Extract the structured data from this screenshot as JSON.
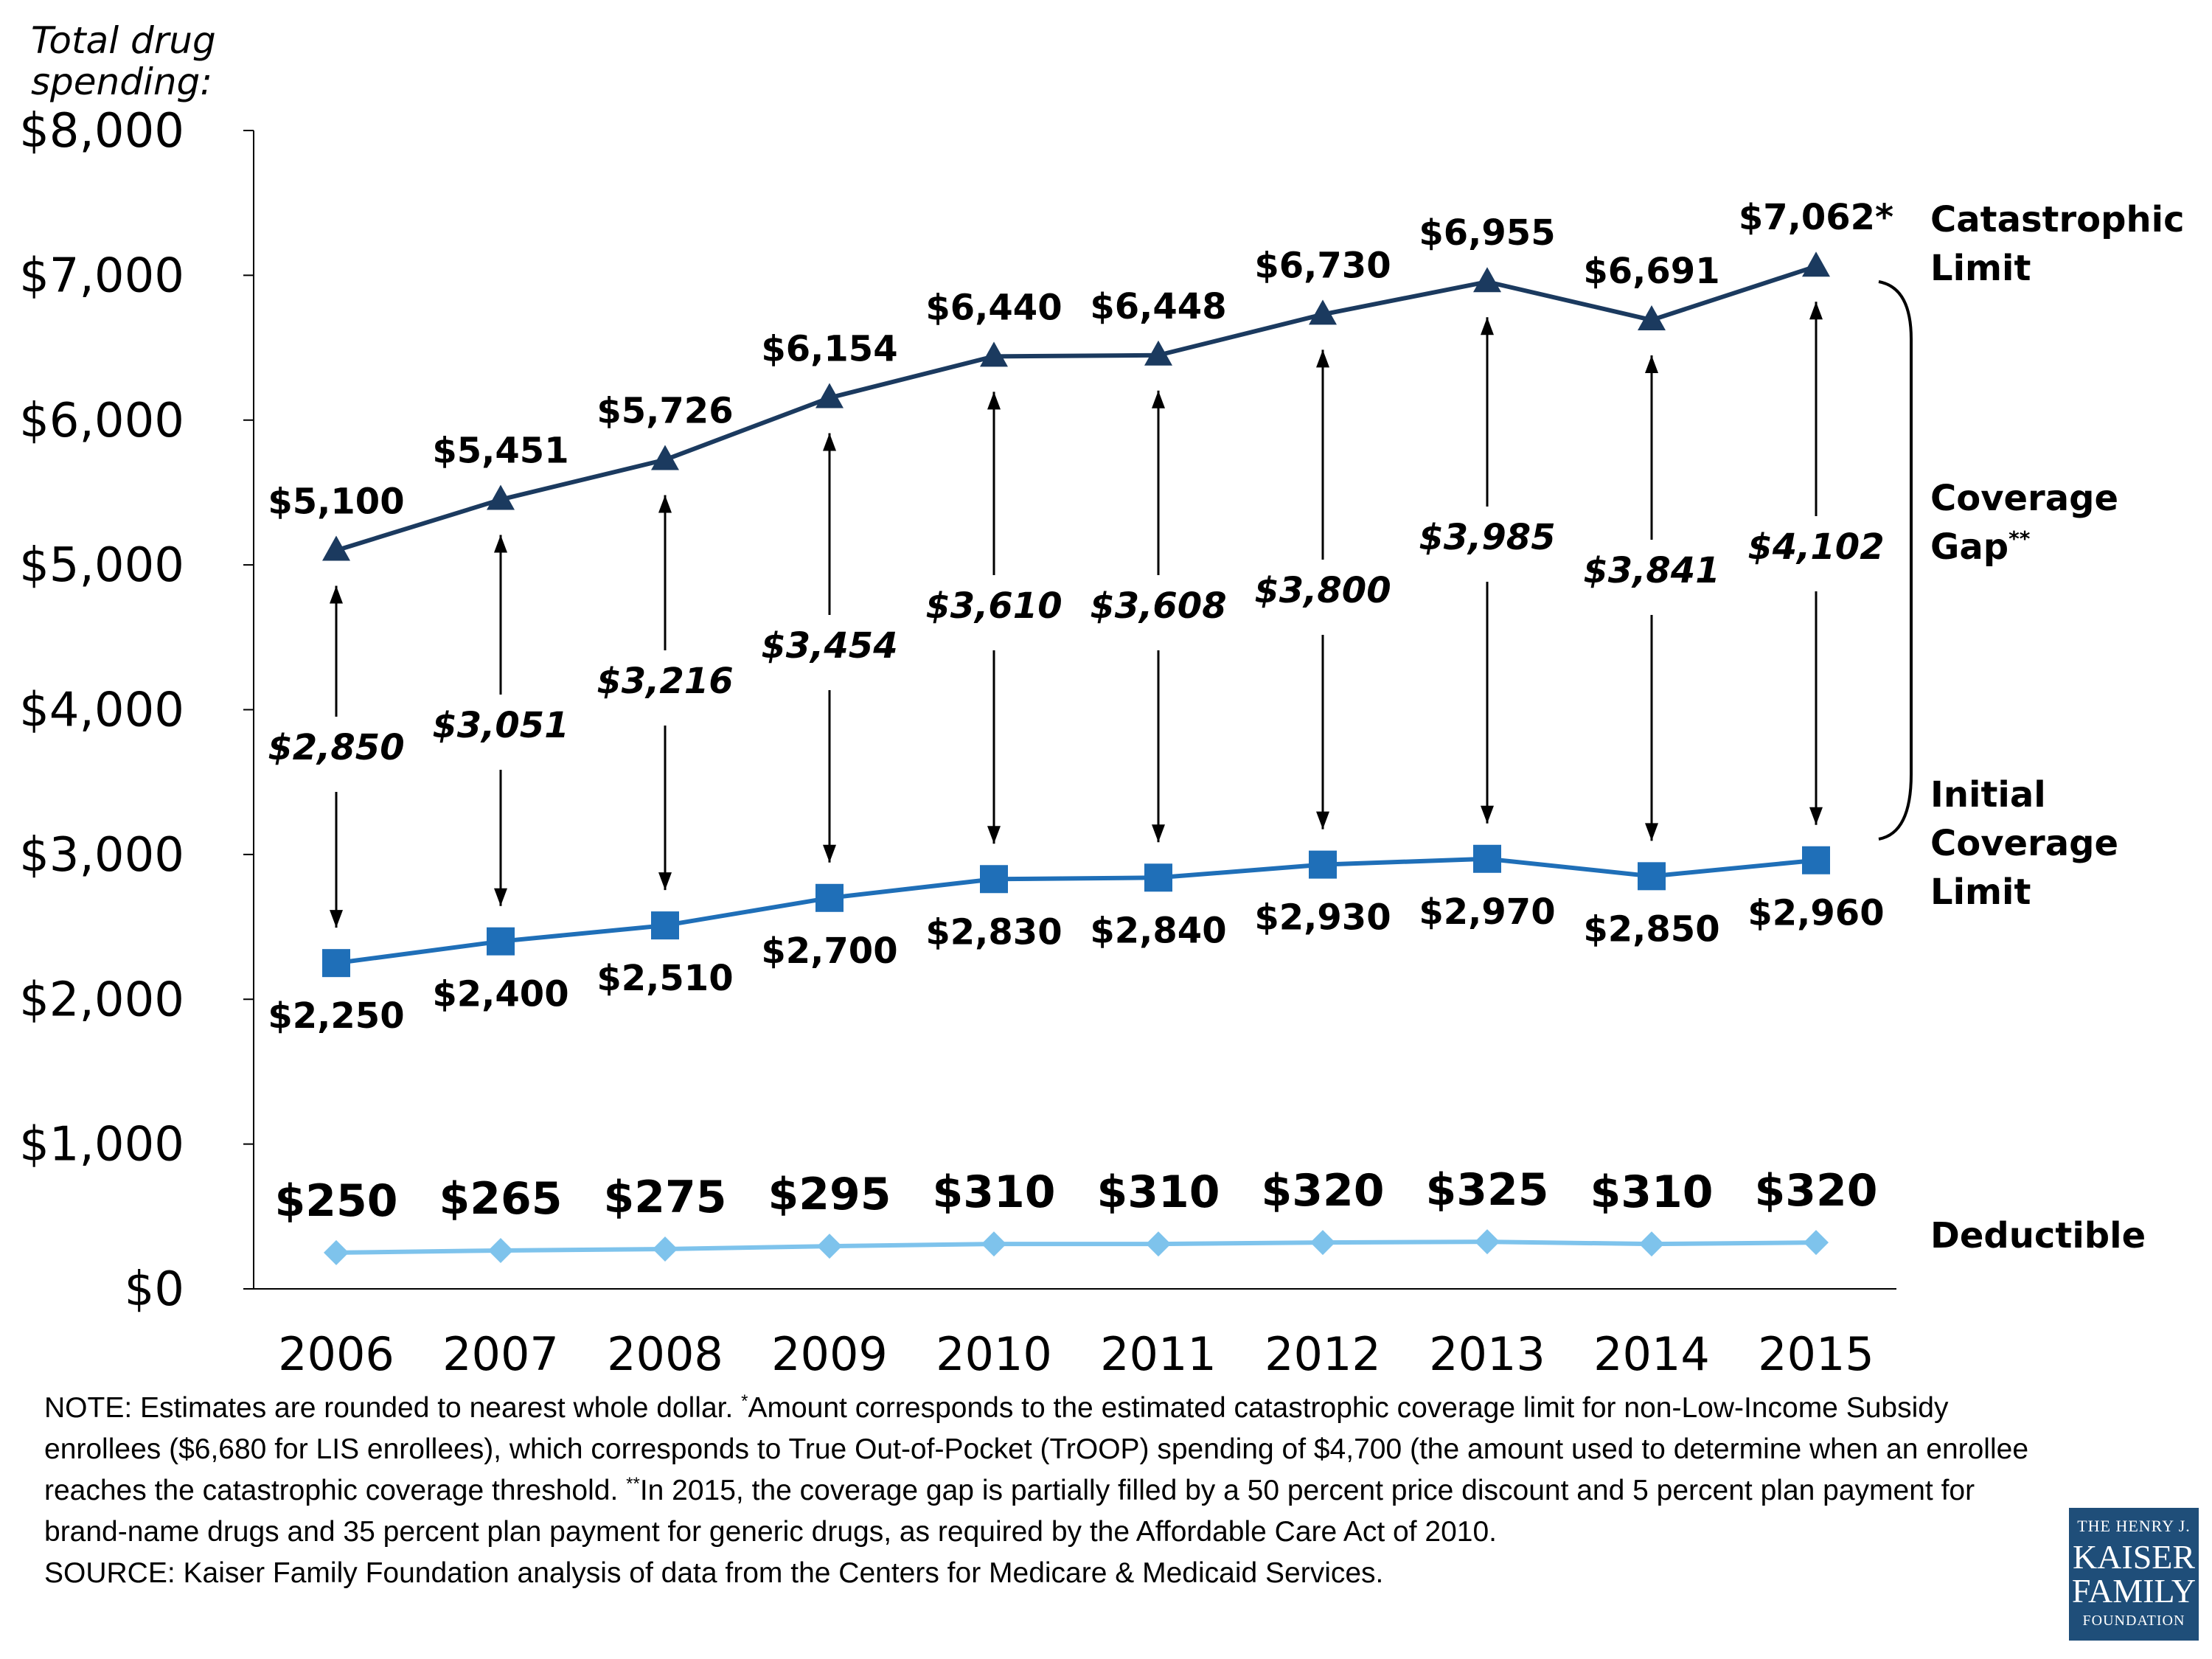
{
  "chart_data": {
    "type": "line",
    "ylabel": "Total drug spending:",
    "y_ticks": [
      "$0",
      "$1,000",
      "$2,000",
      "$3,000",
      "$4,000",
      "$5,000",
      "$6,000",
      "$7,000",
      "$8,000"
    ],
    "ylim": [
      0,
      8000
    ],
    "categories": [
      "2006",
      "2007",
      "2008",
      "2009",
      "2010",
      "2011",
      "2012",
      "2013",
      "2014",
      "2015"
    ],
    "grid": false,
    "colors": {
      "catastrophic": "#1b3a5f",
      "initial": "#1f6fb8",
      "deductible": "#7ec3ec",
      "arrow": "#000000"
    },
    "series": [
      {
        "name": "Catastrophic Limit",
        "marker": "triangle",
        "values": [
          5100,
          5451,
          5726,
          6154,
          6440,
          6448,
          6730,
          6955,
          6691,
          7062
        ],
        "labels": [
          "$5,100",
          "$5,451",
          "$5,726",
          "$6,154",
          "$6,440",
          "$6,448",
          "$6,730",
          "$6,955",
          "$6,691",
          "$7,062*"
        ]
      },
      {
        "name": "Initial Coverage Limit",
        "marker": "square",
        "values": [
          2250,
          2400,
          2510,
          2700,
          2830,
          2840,
          2930,
          2970,
          2850,
          2960
        ],
        "labels": [
          "$2,250",
          "$2,400",
          "$2,510",
          "$2,700",
          "$2,830",
          "$2,840",
          "$2,930",
          "$2,970",
          "$2,850",
          "$2,960"
        ]
      },
      {
        "name": "Deductible",
        "marker": "diamond",
        "values": [
          250,
          265,
          275,
          295,
          310,
          310,
          320,
          325,
          310,
          320
        ],
        "labels": [
          "$250",
          "$265",
          "$275",
          "$295",
          "$310",
          "$310",
          "$320",
          "$325",
          "$310",
          "$320"
        ]
      }
    ],
    "coverage_gap": {
      "name": "Coverage Gap",
      "name_suffix": "**",
      "values": [
        2850,
        3051,
        3216,
        3454,
        3610,
        3608,
        3800,
        3985,
        3841,
        4102
      ],
      "labels": [
        "$2,850",
        "$3,051",
        "$3,216",
        "$3,454",
        "$3,610",
        "$3,608",
        "$3,800",
        "$3,985",
        "$3,841",
        "$4,102"
      ]
    },
    "legend_labels": {
      "catastrophic": [
        "Catastrophic",
        "Limit"
      ],
      "gap": [
        "Coverage",
        "Gap"
      ],
      "initial": [
        "Initial",
        "Coverage",
        "Limit"
      ],
      "deductible": [
        "Deductible"
      ]
    }
  },
  "note": {
    "part1": "NOTE:  Estimates are rounded to nearest whole dollar. ",
    "star": "*",
    "part2": "Amount corresponds to the estimated catastrophic coverage limit for non-Low-Income Subsidy enrollees ($6,680 for LIS enrollees), which corresponds to True Out-of-Pocket (TrOOP) spending of $4,700 (the amount used to determine when an enrollee reaches the catastrophic coverage threshold.  ",
    "dstar": "**",
    "part3": "In 2015, the coverage gap is partially filled by a 50 percent price discount and 5 percent plan payment for brand-name drugs and 35 percent plan payment for generic drugs, as required by the Affordable Care Act of 2010."
  },
  "source": "SOURCE: Kaiser Family Foundation analysis of data from the Centers for Medicare & Medicaid Services.",
  "logo": {
    "line1": "THE HENRY J.",
    "line2": "KAISER",
    "line3": "FAMILY",
    "line4": "FOUNDATION"
  }
}
